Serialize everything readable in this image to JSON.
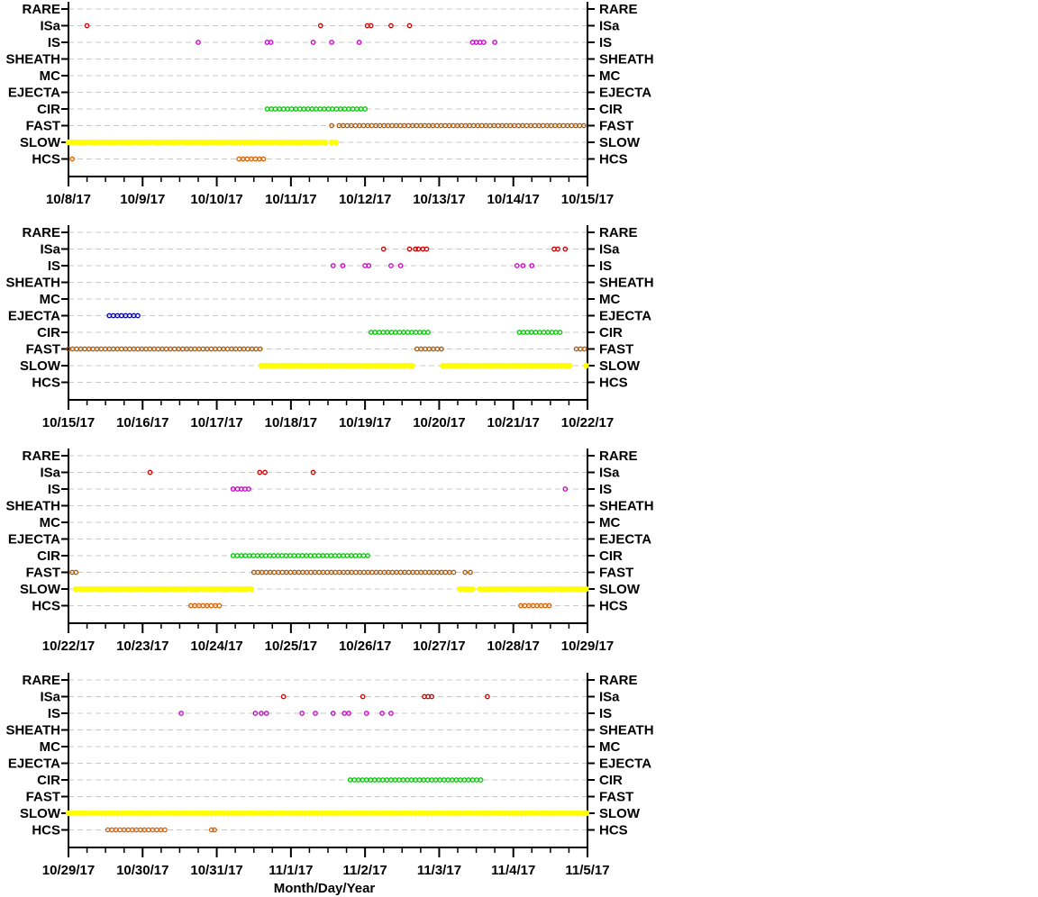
{
  "categories": [
    "RARE",
    "ISa",
    "IS",
    "SHEATH",
    "MC",
    "EJECTA",
    "CIR",
    "FAST",
    "SLOW",
    "HCS"
  ],
  "xlabel": "Month/Day/Year",
  "colors": {
    "RARE": "#000000",
    "ISa": "#cc0000",
    "IS": "#cc00cc",
    "SHEATH": "#000000",
    "MC": "#000000",
    "EJECTA": "#0000aa",
    "CIR": "#00cc00",
    "FAST": "#b35900",
    "SLOW": "#ffff00",
    "HCS": "#e06000"
  },
  "chart_data": [
    {
      "type": "scatter",
      "ticks": [
        "10/8/17",
        "10/9/17",
        "10/10/17",
        "10/11/17",
        "10/12/17",
        "10/13/17",
        "10/14/17",
        "10/15/17"
      ],
      "xrange_days": [
        0,
        7
      ],
      "points": {
        "ISa": [
          0.25,
          3.4,
          4.03,
          4.08,
          4.35,
          4.6
        ],
        "IS": [
          1.75,
          2.68,
          2.73,
          3.3,
          3.55,
          3.92,
          5.45,
          5.5,
          5.55,
          5.6,
          5.75
        ],
        "HCS": [
          0.05
        ]
      },
      "runs": {
        "CIR": [
          [
            2.68,
            4.05
          ]
        ],
        "FAST": [
          [
            3.55,
            3.55
          ],
          [
            3.65,
            7.0
          ]
        ],
        "SLOW": [
          [
            0.0,
            3.5
          ],
          [
            3.55,
            3.62
          ]
        ],
        "HCS": [
          [
            2.3,
            2.65
          ]
        ]
      }
    },
    {
      "type": "scatter",
      "ticks": [
        "10/15/17",
        "10/16/17",
        "10/17/17",
        "10/18/17",
        "10/19/17",
        "10/20/17",
        "10/21/17",
        "10/22/17"
      ],
      "xrange_days": [
        0,
        7
      ],
      "points": {
        "ISa": [
          4.25,
          4.6,
          4.68,
          4.72,
          4.78,
          4.83,
          6.55,
          6.6,
          6.7
        ],
        "IS": [
          3.57,
          3.7,
          4.0,
          4.05,
          4.35,
          4.48,
          6.05,
          6.13,
          6.25
        ]
      },
      "runs": {
        "EJECTA": [
          [
            0.55,
            0.95
          ]
        ],
        "CIR": [
          [
            4.08,
            4.85
          ],
          [
            6.08,
            6.68
          ]
        ],
        "FAST": [
          [
            0.0,
            2.6
          ],
          [
            4.7,
            5.05
          ],
          [
            6.85,
            7.0
          ]
        ],
        "SLOW": [
          [
            2.6,
            4.65
          ],
          [
            5.05,
            6.78
          ],
          [
            6.98,
            7.0
          ]
        ]
      }
    },
    {
      "type": "scatter",
      "ticks": [
        "10/22/17",
        "10/23/17",
        "10/24/17",
        "10/25/17",
        "10/26/17",
        "10/27/17",
        "10/28/17",
        "10/29/17"
      ],
      "xrange_days": [
        0,
        7
      ],
      "points": {
        "ISa": [
          1.1,
          2.58,
          2.65,
          3.3
        ],
        "IS": [
          2.22,
          2.28,
          2.33,
          2.38,
          2.43,
          6.7
        ],
        "FAST": [
          0.05,
          0.1,
          5.35,
          5.42
        ]
      },
      "runs": {
        "CIR": [
          [
            2.22,
            4.05
          ]
        ],
        "FAST": [
          [
            2.5,
            5.2
          ]
        ],
        "SLOW": [
          [
            0.1,
            2.5
          ],
          [
            5.28,
            5.48
          ],
          [
            5.55,
            7.0
          ]
        ],
        "HCS": [
          [
            1.65,
            2.07
          ],
          [
            6.1,
            6.5
          ]
        ]
      }
    },
    {
      "type": "scatter",
      "ticks": [
        "10/29/17",
        "10/30/17",
        "10/31/17",
        "11/1/17",
        "11/2/17",
        "11/3/17",
        "11/4/17",
        "11/5/17"
      ],
      "xrange_days": [
        0,
        7
      ],
      "points": {
        "ISa": [
          2.9,
          3.97,
          4.8,
          4.85,
          4.9,
          5.65
        ],
        "IS": [
          1.52,
          2.52,
          2.6,
          2.67,
          3.15,
          3.33,
          3.57,
          3.72,
          3.78,
          4.02,
          4.23,
          4.35
        ],
        "HCS": [
          1.93,
          1.97
        ]
      },
      "runs": {
        "CIR": [
          [
            3.8,
            5.6
          ]
        ],
        "SLOW": [
          [
            0.0,
            7.0
          ]
        ],
        "HCS": [
          [
            0.53,
            1.3
          ]
        ]
      }
    }
  ]
}
